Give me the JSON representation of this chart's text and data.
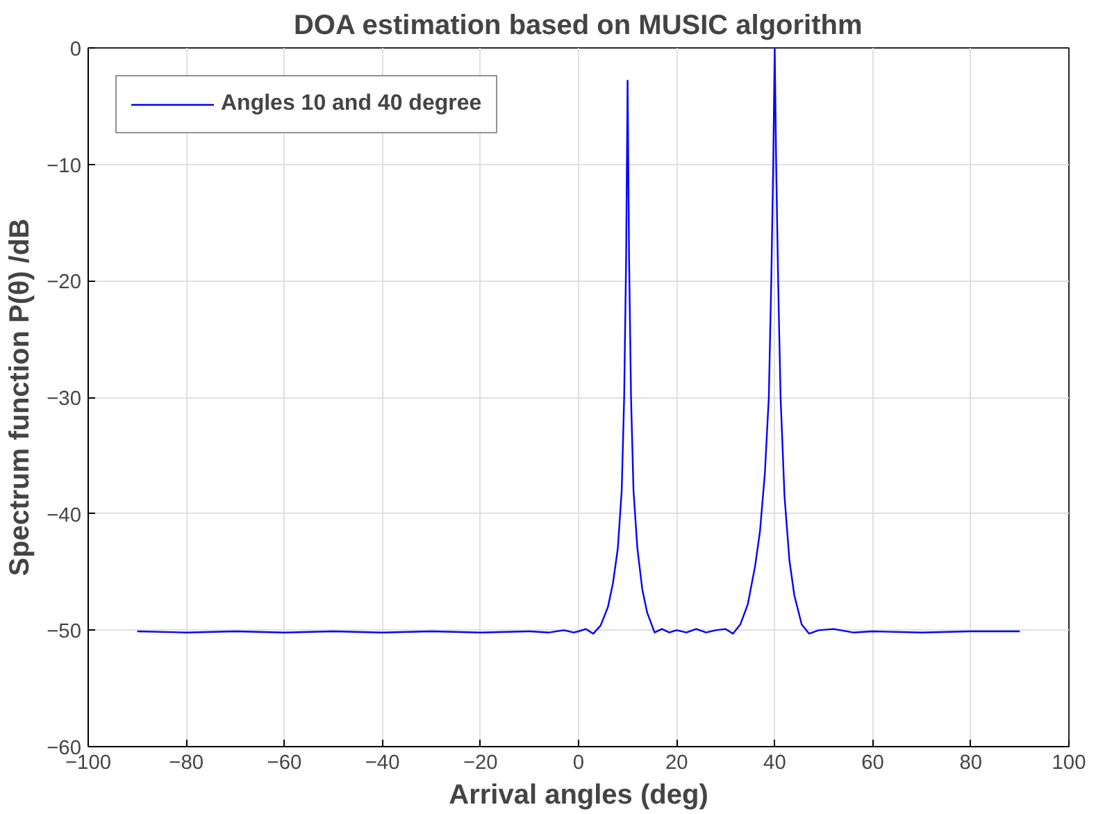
{
  "chart_data": {
    "type": "line",
    "title": "DOA estimation based on MUSIC algorithm",
    "xlabel": "Arrival angles (deg)",
    "ylabel": "Spectrum function P(θ) /dB",
    "xlim": [
      -100,
      100
    ],
    "xticks": [
      -100,
      -80,
      -60,
      -40,
      -20,
      0,
      20,
      40,
      60,
      80,
      100
    ],
    "ylim": [
      -60,
      0
    ],
    "yticks": [
      -60,
      -50,
      -40,
      -30,
      -20,
      -10,
      0
    ],
    "grid": true,
    "legend": "top left",
    "series": [
      {
        "name": "Angles 10 and 40 degree",
        "color": "#0000ff",
        "x": [
          -90,
          -80,
          -70,
          -60,
          -50,
          -40,
          -30,
          -20,
          -10,
          -6,
          -3,
          -1,
          0,
          1.5,
          3,
          4.5,
          6,
          7,
          8,
          8.8,
          9.3,
          9.7,
          10,
          10.3,
          10.7,
          11.2,
          12,
          13,
          14,
          15.5,
          17,
          18.5,
          20,
          22,
          24,
          26,
          28,
          30,
          31.5,
          33,
          34.5,
          36,
          37,
          38,
          38.8,
          39.3,
          39.7,
          40,
          40.3,
          40.7,
          41.2,
          42,
          43,
          44,
          45.5,
          47,
          49,
          52,
          56,
          60,
          70,
          80,
          90
        ],
        "values": [
          -50.1,
          -50.2,
          -50.1,
          -50.2,
          -50.1,
          -50.2,
          -50.1,
          -50.2,
          -50.1,
          -50.2,
          -50.0,
          -50.2,
          -50.1,
          -49.9,
          -50.3,
          -49.6,
          -48.0,
          -46.0,
          -43.0,
          -38.0,
          -30.0,
          -18.0,
          -2.8,
          -18.0,
          -30.0,
          -38.0,
          -43.0,
          -46.5,
          -48.5,
          -50.2,
          -49.9,
          -50.2,
          -50.0,
          -50.2,
          -49.9,
          -50.2,
          -50.0,
          -49.9,
          -50.3,
          -49.5,
          -47.8,
          -44.5,
          -41.5,
          -36.5,
          -30.0,
          -20.0,
          -10.0,
          0,
          -10.0,
          -20.0,
          -30.0,
          -38.5,
          -44.0,
          -47.0,
          -49.5,
          -50.3,
          -50.0,
          -49.9,
          -50.2,
          -50.1,
          -50.2,
          -50.1,
          -50.1
        ]
      }
    ]
  }
}
